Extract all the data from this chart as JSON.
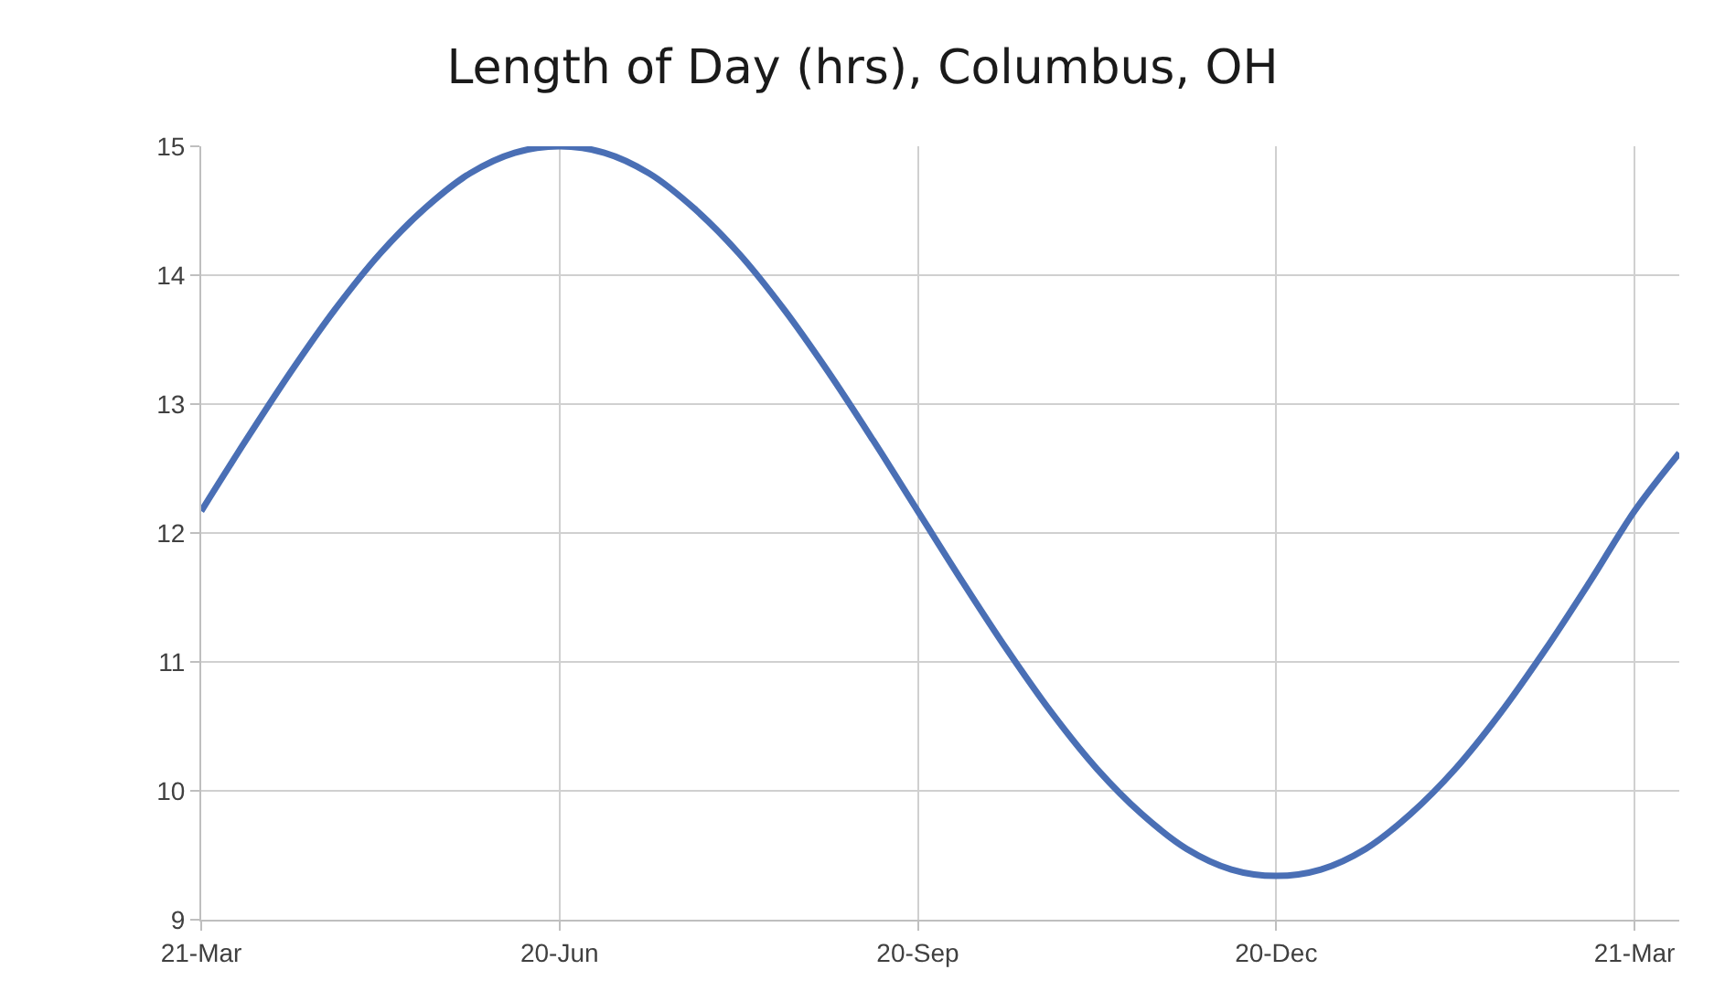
{
  "chart_data": {
    "type": "line",
    "title": "Length of Day (hrs), Columbus, OH",
    "categories": [
      "21-Mar",
      null,
      null,
      null,
      null,
      null,
      null,
      null,
      "20-Jun",
      null,
      null,
      null,
      null,
      null,
      null,
      null,
      "20-Sep",
      null,
      null,
      null,
      null,
      null,
      null,
      null,
      "20-Dec",
      null,
      null,
      null,
      null,
      null,
      null,
      null,
      "21-Mar",
      null
    ],
    "series": [
      {
        "color": "#4a6fb5",
        "values": [
          12.17,
          12.72,
          13.25,
          13.74,
          14.17,
          14.52,
          14.79,
          14.95,
          15.0,
          14.95,
          14.79,
          14.52,
          14.17,
          13.74,
          13.25,
          12.72,
          12.17,
          11.62,
          11.09,
          10.6,
          10.17,
          9.82,
          9.55,
          9.39,
          9.34,
          9.39,
          9.55,
          9.82,
          10.17,
          10.6,
          11.09,
          11.62,
          12.17,
          12.62
        ]
      }
    ],
    "ylim": [
      9,
      15
    ],
    "yticks": [
      9,
      10,
      11,
      12,
      13,
      14,
      15
    ],
    "grid": true,
    "legend": false,
    "marker": "none",
    "line_style": "solid"
  }
}
